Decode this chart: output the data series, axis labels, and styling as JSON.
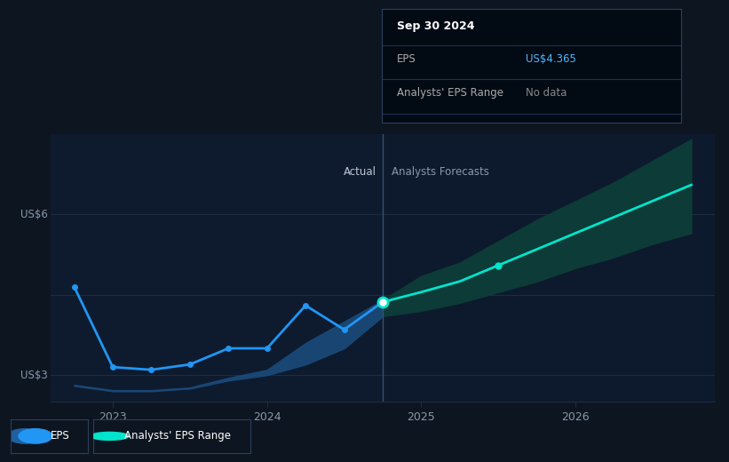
{
  "bg_color": "#0d1520",
  "plot_bg_color": "#0d1a2e",
  "actual_bg_color": "#0f1e30",
  "grid_color": "#1e2d42",
  "actual_line_color": "#2196f3",
  "forecast_line_color": "#00e5cc",
  "actual_band_color": "#1a4a7a",
  "forecast_band_color": "#0d3d38",
  "divider_color": "#3a5070",
  "ylabel_us3": "US$3",
  "ylabel_us6": "US$6",
  "actual_label": "Actual",
  "forecast_label": "Analysts Forecasts",
  "xlabel_ticks": [
    "2023",
    "2024",
    "2025",
    "2026"
  ],
  "xtick_positions": [
    2023.0,
    2024.0,
    2025.0,
    2026.0
  ],
  "legend_eps": "EPS",
  "legend_range": "Analysts' EPS Range",
  "tooltip_date": "Sep 30 2024",
  "tooltip_eps_label": "EPS",
  "tooltip_eps_value": "US$4.365",
  "tooltip_range_label": "Analysts' EPS Range",
  "tooltip_range_value": "No data",
  "eps_color": "#4db8ff",
  "no_data_color": "#888888",
  "actual_x": [
    2022.75,
    2023.0,
    2023.25,
    2023.5,
    2023.75,
    2024.0,
    2024.25,
    2024.5,
    2024.75
  ],
  "actual_y": [
    4.65,
    3.15,
    3.1,
    3.2,
    3.5,
    3.5,
    4.3,
    3.85,
    4.365
  ],
  "actual_band_lower": [
    2.8,
    2.7,
    2.7,
    2.75,
    2.9,
    3.0,
    3.2,
    3.5,
    4.1
  ],
  "actual_band_upper": [
    2.82,
    2.72,
    2.72,
    2.77,
    2.95,
    3.1,
    3.6,
    4.0,
    4.4
  ],
  "forecast_x": [
    2024.75,
    2025.0,
    2025.25,
    2025.5,
    2025.75,
    2026.0,
    2026.25,
    2026.5,
    2026.75
  ],
  "forecast_y": [
    4.365,
    4.55,
    4.75,
    5.05,
    5.35,
    5.65,
    5.95,
    6.25,
    6.55
  ],
  "forecast_band_lower": [
    4.1,
    4.2,
    4.35,
    4.55,
    4.75,
    5.0,
    5.2,
    5.45,
    5.65
  ],
  "forecast_band_upper": [
    4.4,
    4.85,
    5.1,
    5.5,
    5.9,
    6.25,
    6.6,
    7.0,
    7.4
  ],
  "ylim": [
    2.5,
    7.5
  ],
  "xlim": [
    2022.6,
    2026.9
  ],
  "divider_x": 2024.75,
  "marker_dot_x": 2025.5,
  "marker_dot_y": 5.05
}
